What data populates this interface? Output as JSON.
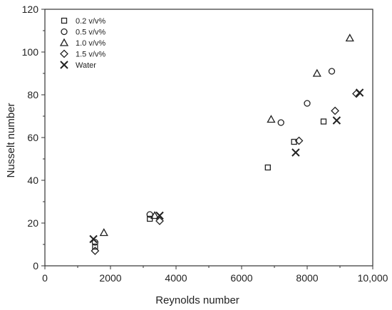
{
  "chart_data": {
    "type": "scatter",
    "xlabel": "Reynolds number",
    "ylabel": "Nusselt number",
    "xlim": [
      0,
      10000
    ],
    "ylim": [
      0,
      120
    ],
    "x_ticks": [
      0,
      2000,
      4000,
      6000,
      8000,
      10000
    ],
    "x_tick_labels": [
      "0",
      "2000",
      "4000",
      "6000",
      "8000",
      "10,000"
    ],
    "y_ticks": [
      0,
      20,
      40,
      60,
      80,
      100,
      120
    ],
    "y_tick_labels": [
      "0",
      "20",
      "40",
      "60",
      "80",
      "100",
      "120"
    ],
    "grid": false,
    "legend_position": "top-left",
    "series": [
      {
        "name": "0.2 v/v%",
        "marker": "square",
        "x": [
          1530,
          3200,
          6800,
          7600,
          8500
        ],
        "y": [
          9,
          22,
          46,
          58,
          67.5
        ]
      },
      {
        "name": "0.5 v/v%",
        "marker": "circle",
        "x": [
          1530,
          3200,
          7200,
          8000,
          8750
        ],
        "y": [
          11,
          24,
          67,
          76,
          91
        ]
      },
      {
        "name": "1.0 v/v%",
        "marker": "triangle",
        "x": [
          1800,
          3350,
          6900,
          8300,
          9300
        ],
        "y": [
          15.5,
          23.5,
          68.5,
          90,
          106.5
        ]
      },
      {
        "name": "1.5 v/v%",
        "marker": "diamond",
        "x": [
          1530,
          3500,
          7750,
          8850,
          9500
        ],
        "y": [
          7,
          21,
          58.5,
          72.5,
          80.5
        ]
      },
      {
        "name": "Water",
        "marker": "x",
        "x": [
          1480,
          3500,
          7650,
          8900,
          9600
        ],
        "y": [
          12.5,
          23.5,
          53,
          68,
          81
        ]
      }
    ]
  }
}
